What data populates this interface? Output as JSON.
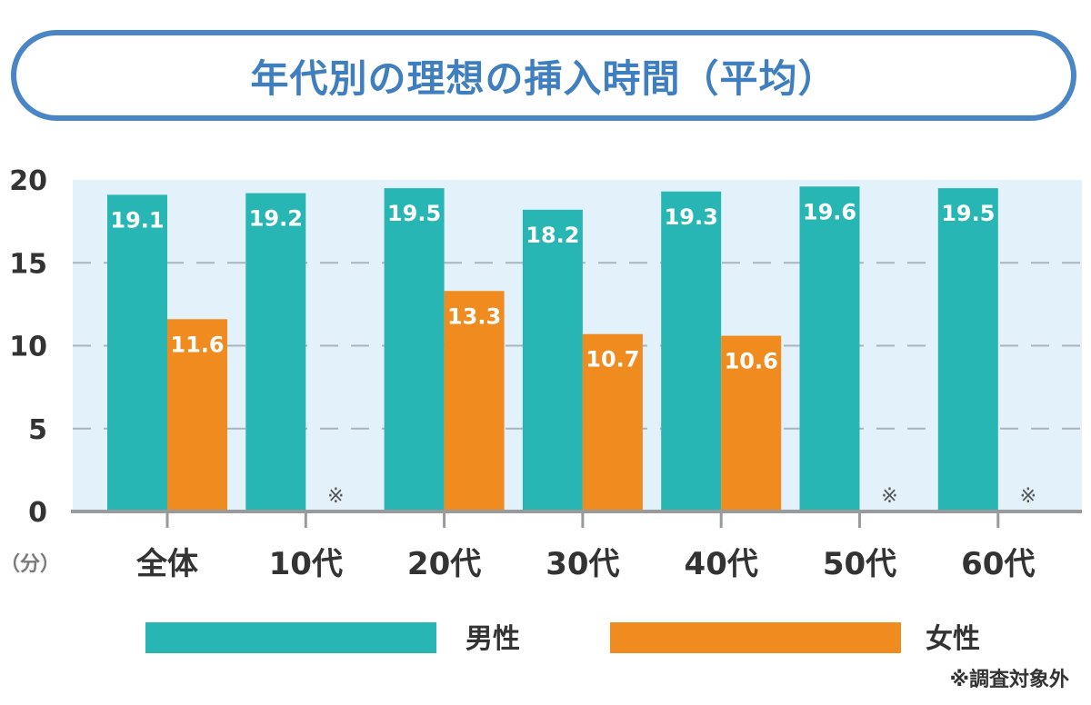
{
  "colors": {
    "male": "#27b6b4",
    "female": "#ef8b1f",
    "plot_bg": "#e3f1fa",
    "axis": "#9a9a9a",
    "title_border": "#4a86c6",
    "title_text": "#3f7fc0"
  },
  "chart_data": {
    "type": "bar",
    "title": "年代別の理想の挿入時間（平均）",
    "ylabel": "（分）",
    "ylim": [
      0,
      20
    ],
    "yticks": [
      "0",
      "5",
      "10",
      "15",
      "20"
    ],
    "categories": [
      "全体",
      "10代",
      "20代",
      "30代",
      "40代",
      "50代",
      "60代"
    ],
    "series": [
      {
        "name": "男性",
        "values": [
          19.1,
          19.2,
          19.5,
          18.2,
          19.3,
          19.6,
          19.5
        ],
        "labels": [
          "19.1",
          "19.2",
          "19.5",
          "18.2",
          "19.3",
          "19.6",
          "19.5"
        ]
      },
      {
        "name": "女性",
        "values": [
          11.6,
          null,
          13.3,
          10.7,
          10.6,
          null,
          null
        ],
        "labels": [
          "11.6",
          "",
          "13.3",
          "10.7",
          "10.6",
          "",
          ""
        ]
      }
    ],
    "missing_marker": "※",
    "footnote": "※調査対象外",
    "grid": "dashed horizontal",
    "legend": "bottom"
  }
}
